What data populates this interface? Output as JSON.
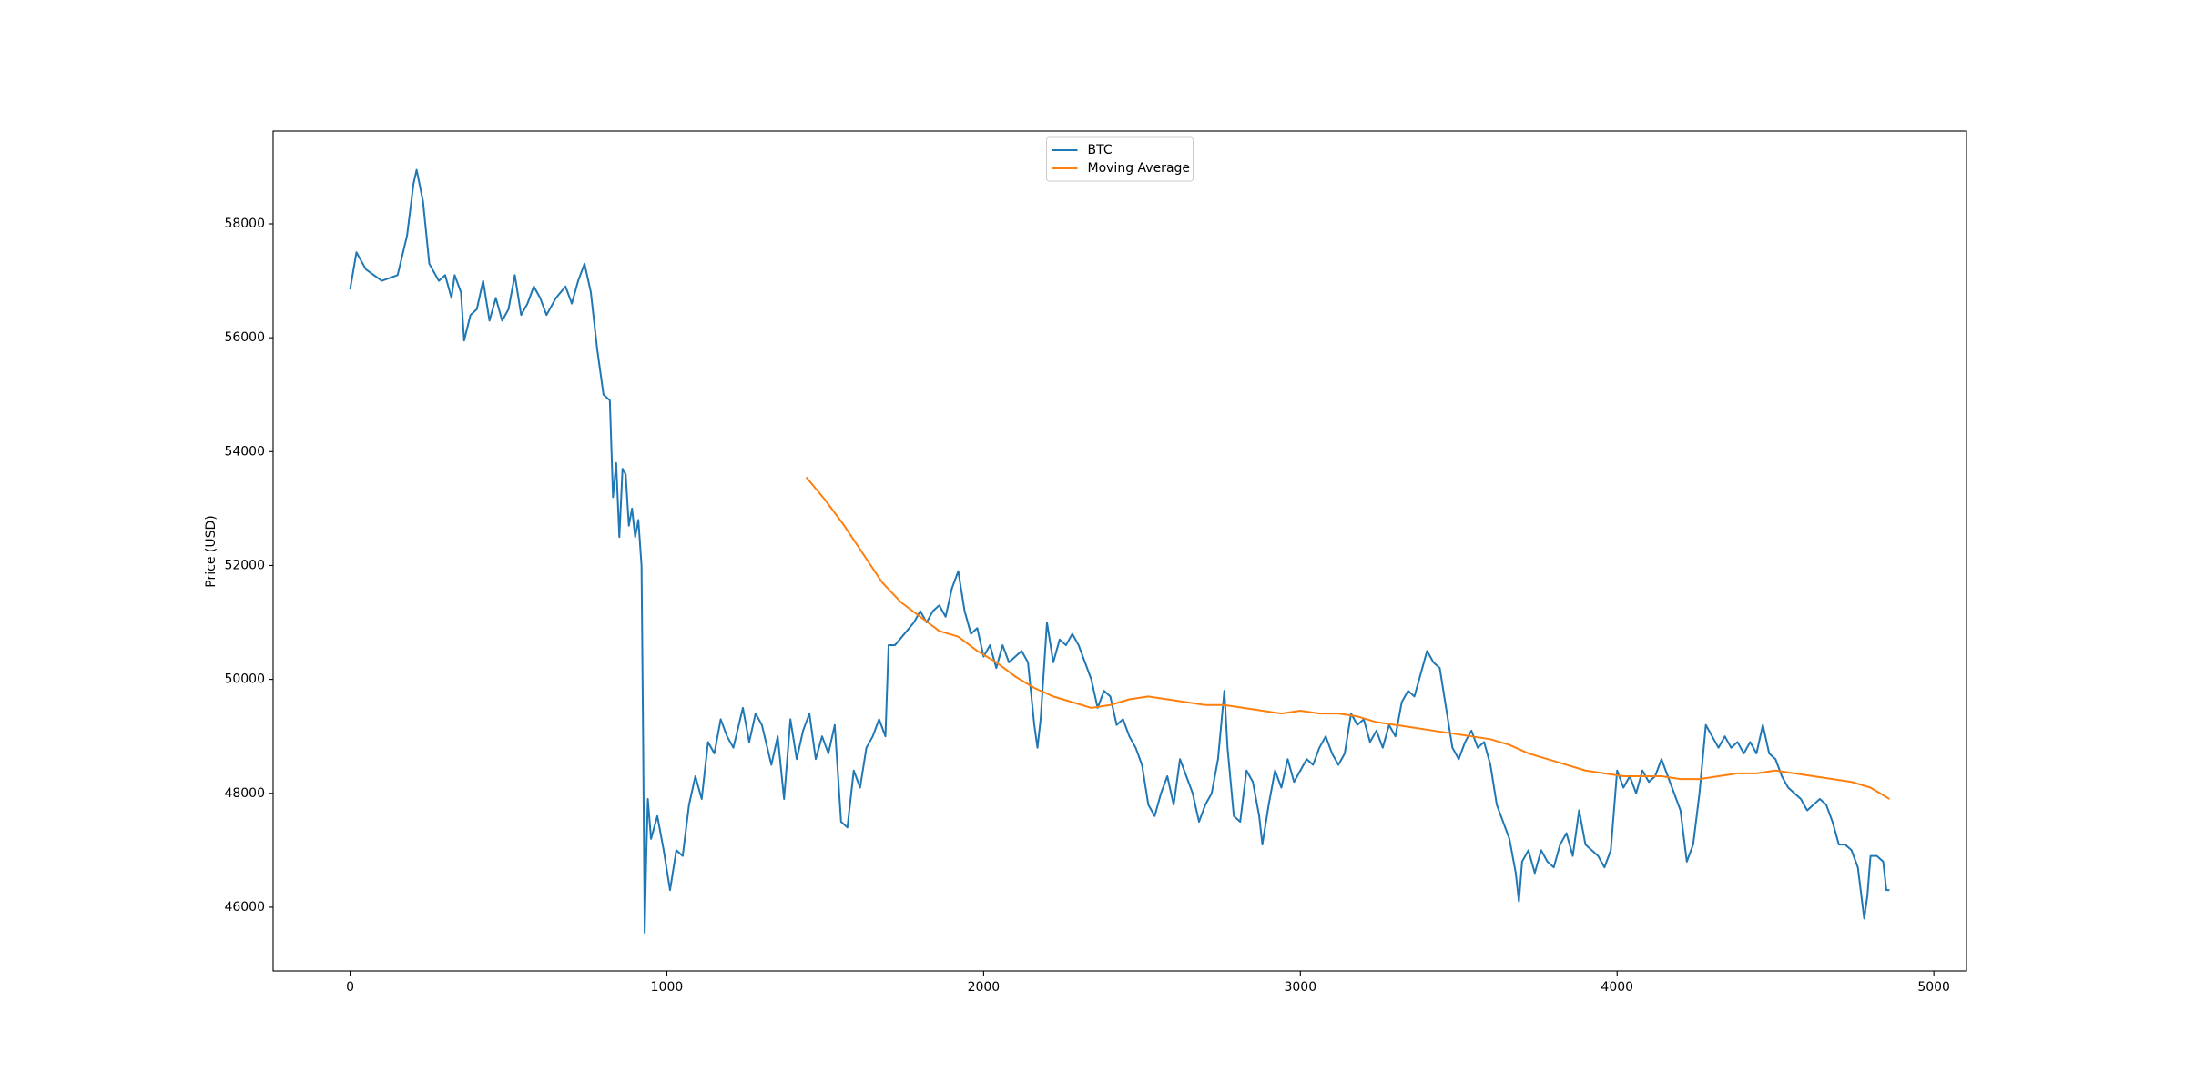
{
  "chart_data": {
    "type": "line",
    "y_label": "Price (USD)",
    "xlim": [
      -243,
      5103
    ],
    "ylim": [
      44880,
      59630
    ],
    "xticks": [
      0,
      1000,
      2000,
      3000,
      4000,
      5000
    ],
    "yticks": [
      46000,
      48000,
      50000,
      52000,
      54000,
      56000,
      58000
    ],
    "legend": "upper center",
    "series": [
      {
        "name": "BTC",
        "color": "#1f77b4",
        "x": [
          0,
          20,
          50,
          100,
          150,
          180,
          200,
          210,
          230,
          250,
          280,
          300,
          320,
          330,
          350,
          360,
          380,
          400,
          420,
          440,
          460,
          480,
          500,
          520,
          540,
          560,
          580,
          600,
          620,
          650,
          680,
          700,
          720,
          740,
          760,
          780,
          800,
          820,
          830,
          840,
          850,
          860,
          870,
          880,
          890,
          900,
          910,
          920,
          925,
          930,
          935,
          940,
          950,
          970,
          990,
          1010,
          1030,
          1050,
          1070,
          1090,
          1110,
          1130,
          1150,
          1170,
          1190,
          1210,
          1240,
          1260,
          1280,
          1300,
          1330,
          1350,
          1370,
          1390,
          1410,
          1430,
          1450,
          1470,
          1490,
          1510,
          1530,
          1550,
          1570,
          1590,
          1610,
          1630,
          1650,
          1670,
          1690,
          1700,
          1720,
          1750,
          1780,
          1800,
          1820,
          1840,
          1860,
          1880,
          1900,
          1920,
          1940,
          1960,
          1980,
          2000,
          2020,
          2040,
          2060,
          2080,
          2100,
          2120,
          2140,
          2160,
          2170,
          2180,
          2200,
          2220,
          2240,
          2260,
          2280,
          2300,
          2320,
          2340,
          2360,
          2380,
          2400,
          2420,
          2440,
          2460,
          2480,
          2500,
          2520,
          2540,
          2560,
          2580,
          2600,
          2620,
          2640,
          2660,
          2680,
          2700,
          2720,
          2740,
          2760,
          2770,
          2790,
          2810,
          2830,
          2850,
          2870,
          2880,
          2900,
          2920,
          2940,
          2960,
          2980,
          3000,
          3020,
          3040,
          3060,
          3080,
          3100,
          3120,
          3140,
          3160,
          3180,
          3200,
          3220,
          3240,
          3260,
          3280,
          3300,
          3320,
          3340,
          3360,
          3380,
          3400,
          3420,
          3440,
          3460,
          3480,
          3500,
          3520,
          3540,
          3560,
          3580,
          3600,
          3620,
          3640,
          3660,
          3680,
          3690,
          3700,
          3720,
          3740,
          3760,
          3780,
          3800,
          3820,
          3840,
          3860,
          3880,
          3900,
          3920,
          3940,
          3960,
          3980,
          4000,
          4020,
          4040,
          4060,
          4080,
          4100,
          4120,
          4140,
          4160,
          4180,
          4200,
          4220,
          4240,
          4260,
          4280,
          4300,
          4320,
          4340,
          4360,
          4380,
          4400,
          4420,
          4440,
          4460,
          4480,
          4500,
          4520,
          4540,
          4560,
          4580,
          4600,
          4620,
          4640,
          4660,
          4680,
          4700,
          4720,
          4740,
          4760,
          4780,
          4790,
          4800,
          4820,
          4840,
          4850,
          4860
        ],
        "values": [
          56850,
          57500,
          57200,
          57000,
          57100,
          57800,
          58700,
          58950,
          58400,
          57300,
          57000,
          57100,
          56700,
          57100,
          56800,
          55950,
          56400,
          56500,
          57000,
          56300,
          56700,
          56300,
          56500,
          57100,
          56400,
          56600,
          56900,
          56700,
          56400,
          56700,
          56900,
          56600,
          57000,
          57300,
          56800,
          55800,
          55000,
          54900,
          53200,
          53800,
          52500,
          53700,
          53600,
          52700,
          53000,
          52500,
          52800,
          52000,
          49000,
          45550,
          46900,
          47900,
          47200,
          47600,
          47000,
          46300,
          47000,
          46900,
          47800,
          48300,
          47900,
          48900,
          48700,
          49300,
          49000,
          48800,
          49500,
          48900,
          49400,
          49200,
          48500,
          49000,
          47900,
          49300,
          48600,
          49100,
          49400,
          48600,
          49000,
          48700,
          49200,
          47500,
          47400,
          48400,
          48100,
          48800,
          49000,
          49300,
          49000,
          50600,
          50600,
          50800,
          51000,
          51200,
          51000,
          51200,
          51300,
          51100,
          51600,
          51900,
          51200,
          50800,
          50900,
          50400,
          50600,
          50200,
          50600,
          50300,
          50400,
          50500,
          50300,
          49200,
          48800,
          49300,
          51000,
          50300,
          50700,
          50600,
          50800,
          50600,
          50300,
          50000,
          49500,
          49800,
          49700,
          49200,
          49300,
          49000,
          48800,
          48500,
          47800,
          47600,
          48000,
          48300,
          47800,
          48600,
          48300,
          48000,
          47500,
          47800,
          48000,
          48600,
          49800,
          48800,
          47600,
          47500,
          48400,
          48200,
          47600,
          47100,
          47800,
          48400,
          48100,
          48600,
          48200,
          48400,
          48600,
          48500,
          48800,
          49000,
          48700,
          48500,
          48700,
          49400,
          49200,
          49300,
          48900,
          49100,
          48800,
          49200,
          49000,
          49600,
          49800,
          49700,
          50100,
          50500,
          50300,
          50200,
          49500,
          48800,
          48600,
          48900,
          49100,
          48800,
          48900,
          48500,
          47800,
          47500,
          47200,
          46600,
          46100,
          46800,
          47000,
          46600,
          47000,
          46800,
          46700,
          47100,
          47300,
          46900,
          47700,
          47100,
          47000,
          46900,
          46700,
          47000,
          48400,
          48100,
          48300,
          48000,
          48400,
          48200,
          48300,
          48600,
          48300,
          48000,
          47700,
          46800,
          47100,
          48000,
          49200,
          49000,
          48800,
          49000,
          48800,
          48900,
          48700,
          48900,
          48700,
          49200,
          48700,
          48600,
          48300,
          48100,
          48000,
          47900,
          47700,
          47800,
          47900,
          47800,
          47500,
          47100,
          47100,
          47000,
          46700,
          45800,
          46200,
          46900,
          46900,
          46800,
          46300,
          46300
        ]
      },
      {
        "name": "Moving Average",
        "color": "#ff7f0e",
        "x": [
          1440,
          1500,
          1560,
          1620,
          1680,
          1740,
          1800,
          1860,
          1920,
          1980,
          2040,
          2100,
          2160,
          2220,
          2280,
          2340,
          2400,
          2460,
          2520,
          2580,
          2640,
          2700,
          2760,
          2820,
          2880,
          2940,
          3000,
          3060,
          3120,
          3180,
          3240,
          3300,
          3360,
          3420,
          3480,
          3540,
          3600,
          3660,
          3720,
          3780,
          3840,
          3900,
          3960,
          4020,
          4080,
          4140,
          4200,
          4260,
          4320,
          4380,
          4440,
          4500,
          4560,
          4620,
          4680,
          4740,
          4800,
          4860
        ],
        "values": [
          53550,
          53150,
          52700,
          52200,
          51700,
          51350,
          51100,
          50850,
          50750,
          50500,
          50300,
          50050,
          49850,
          49700,
          49600,
          49500,
          49550,
          49650,
          49700,
          49650,
          49600,
          49550,
          49550,
          49500,
          49450,
          49400,
          49450,
          49400,
          49400,
          49350,
          49250,
          49200,
          49150,
          49100,
          49050,
          49000,
          48950,
          48850,
          48700,
          48600,
          48500,
          48400,
          48350,
          48300,
          48300,
          48300,
          48250,
          48250,
          48300,
          48350,
          48350,
          48400,
          48350,
          48300,
          48250,
          48200,
          48100,
          47900
        ]
      }
    ]
  }
}
